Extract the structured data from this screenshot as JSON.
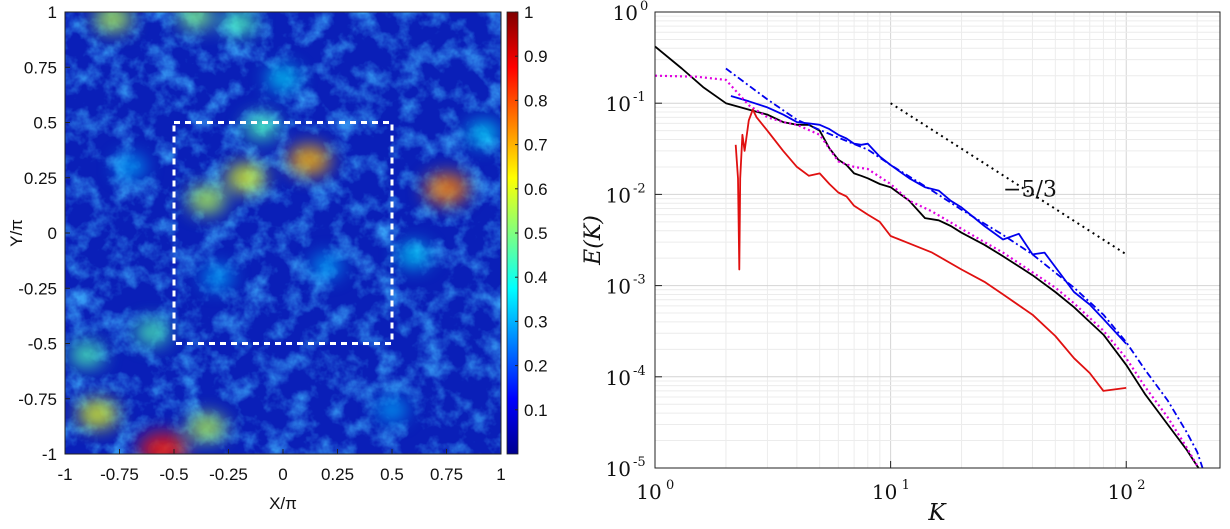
{
  "chart_data": [
    {
      "type": "heatmap",
      "title": "",
      "xlabel": "X/π",
      "ylabel": "Y/π",
      "xlim": [
        -1,
        1
      ],
      "ylim": [
        -1,
        1
      ],
      "xticks": [
        "-1",
        "-0.75",
        "-0.5",
        "-0.25",
        "0",
        "0.25",
        "0.5",
        "0.75",
        "1"
      ],
      "yticks": [
        "1",
        "0.75",
        "0.5",
        "0.25",
        "0",
        "-0.25",
        "-0.5",
        "-0.75",
        "-1"
      ],
      "colormap": "jet",
      "colorbar": {
        "range": [
          0,
          1
        ],
        "ticks": [
          "1",
          "0.9",
          "0.8",
          "0.7",
          "0.6",
          "0.5",
          "0.4",
          "0.3",
          "0.2",
          "0.1"
        ]
      },
      "dashed_box": {
        "x": [
          -0.5,
          0.5
        ],
        "y": [
          -0.5,
          0.5
        ],
        "color": "#ffffff"
      },
      "hotspots": [
        {
          "x": 0.12,
          "y": 0.33,
          "v": 0.7
        },
        {
          "x": -0.35,
          "y": 0.15,
          "v": 0.55
        },
        {
          "x": -0.17,
          "y": 0.25,
          "v": 0.6
        },
        {
          "x": -0.1,
          "y": 0.48,
          "v": 0.45
        },
        {
          "x": 0.75,
          "y": 0.2,
          "v": 0.75
        },
        {
          "x": -0.55,
          "y": -0.98,
          "v": 0.85
        },
        {
          "x": -0.85,
          "y": -0.82,
          "v": 0.6
        },
        {
          "x": -0.35,
          "y": -0.88,
          "v": 0.55
        },
        {
          "x": -0.78,
          "y": 0.97,
          "v": 0.55
        },
        {
          "x": -0.4,
          "y": 0.98,
          "v": 0.5
        },
        {
          "x": -0.2,
          "y": 0.95,
          "v": 0.45
        },
        {
          "x": -0.9,
          "y": -0.55,
          "v": 0.45
        },
        {
          "x": -0.6,
          "y": -0.45,
          "v": 0.45
        },
        {
          "x": 0.6,
          "y": -0.1,
          "v": 0.35
        },
        {
          "x": 0.92,
          "y": 0.45,
          "v": 0.35
        },
        {
          "x": 0.2,
          "y": -0.15,
          "v": 0.3
        },
        {
          "x": -0.3,
          "y": -0.2,
          "v": 0.3
        },
        {
          "x": 0.5,
          "y": -0.8,
          "v": 0.3
        },
        {
          "x": 0.0,
          "y": 0.7,
          "v": 0.35
        },
        {
          "x": -0.7,
          "y": 0.3,
          "v": 0.3
        }
      ]
    },
    {
      "type": "line",
      "title": "",
      "xlabel": "K",
      "ylabel": "E(K)",
      "xscale": "log",
      "yscale": "log",
      "xlim": [
        1,
        250
      ],
      "ylim": [
        1e-05,
        1
      ],
      "grid": true,
      "xticks": [
        {
          "base": "10",
          "exp": "0"
        },
        {
          "base": "10",
          "exp": "1"
        },
        {
          "base": "10",
          "exp": "2"
        }
      ],
      "yticks": [
        {
          "base": "10",
          "exp": "0"
        },
        {
          "base": "10",
          "exp": "-1"
        },
        {
          "base": "10",
          "exp": "-2"
        },
        {
          "base": "10",
          "exp": "-3"
        },
        {
          "base": "10",
          "exp": "-4"
        },
        {
          "base": "10",
          "exp": "-5"
        }
      ],
      "annotation": {
        "text": "−5/3",
        "x": 30,
        "y": 0.0095
      },
      "reference_line": {
        "x": [
          10,
          100
        ],
        "y": [
          0.1,
          0.0022
        ],
        "color": "#000000",
        "style": "dotted"
      },
      "series": [
        {
          "color": "#000000",
          "style": "solid",
          "x": [
            1,
            1.3,
            1.6,
            2,
            2.5,
            3,
            3.5,
            4,
            4.5,
            5,
            5.5,
            6,
            6.5,
            7,
            7.5,
            8,
            9,
            10,
            12,
            14,
            16,
            18,
            20,
            25,
            30,
            40,
            50,
            60,
            70,
            80,
            100,
            120,
            150,
            180,
            200,
            230
          ],
          "y": [
            0.42,
            0.24,
            0.15,
            0.1,
            0.085,
            0.075,
            0.062,
            0.058,
            0.058,
            0.05,
            0.032,
            0.024,
            0.021,
            0.017,
            0.016,
            0.015,
            0.013,
            0.012,
            0.0085,
            0.0055,
            0.0052,
            0.0045,
            0.0038,
            0.0028,
            0.0021,
            0.0013,
            0.00085,
            0.00058,
            0.0004,
            0.00029,
            0.000135,
            6.5e-05,
            3e-05,
            1.6e-05,
            1.05e-05,
            6.5e-06
          ]
        },
        {
          "color": "#0000ee",
          "style": "solid",
          "x": [
            2.1,
            2.5,
            3,
            3.5,
            4,
            4.5,
            5,
            5.5,
            6,
            6.5,
            7,
            7.5,
            8,
            9,
            10,
            12,
            14,
            16,
            18,
            20,
            25,
            30,
            35,
            40,
            45,
            50,
            60,
            70,
            80,
            100
          ],
          "y": [
            0.12,
            0.105,
            0.09,
            0.075,
            0.062,
            0.06,
            0.058,
            0.052,
            0.045,
            0.041,
            0.036,
            0.035,
            0.036,
            0.026,
            0.021,
            0.015,
            0.012,
            0.011,
            0.0085,
            0.0072,
            0.0045,
            0.0032,
            0.0037,
            0.0022,
            0.0023,
            0.0016,
            0.00085,
            0.00062,
            0.00043,
            0.00023
          ]
        },
        {
          "color": "#0000ee",
          "style": "dashdot",
          "x": [
            2,
            3,
            4,
            5,
            6,
            8,
            10,
            15,
            20,
            30,
            40,
            60,
            80,
            100,
            120,
            150,
            180,
            200,
            220
          ],
          "y": [
            0.24,
            0.11,
            0.066,
            0.051,
            0.042,
            0.031,
            0.021,
            0.011,
            0.0068,
            0.0036,
            0.0022,
            0.00095,
            0.00048,
            0.00024,
            0.00012,
            5.5e-05,
            2.5e-05,
            1.5e-05,
            7.2e-06
          ]
        },
        {
          "color": "#e000e0",
          "style": "dotted",
          "x": [
            1,
            1.5,
            2,
            2.5,
            3,
            3.5,
            4,
            5,
            6,
            7,
            8,
            10,
            12,
            15,
            20,
            25,
            30,
            40,
            50,
            60,
            80,
            100,
            120,
            150,
            180,
            210
          ],
          "y": [
            0.2,
            0.195,
            0.18,
            0.095,
            0.07,
            0.062,
            0.058,
            0.045,
            0.023,
            0.02,
            0.019,
            0.013,
            0.0085,
            0.0065,
            0.0042,
            0.003,
            0.0023,
            0.0014,
            0.00095,
            0.00064,
            0.00032,
            0.00016,
            7.8e-05,
            3.6e-05,
            1.7e-05,
            8.5e-06
          ]
        },
        {
          "color": "#e01010",
          "style": "solid",
          "x": [
            2.2,
            2.25,
            2.28,
            2.3,
            2.35,
            2.4,
            2.5,
            2.6,
            2.7,
            3,
            3.5,
            4,
            4.5,
            5,
            5.5,
            6,
            6.5,
            7,
            8,
            9,
            10,
            12,
            15,
            20,
            25,
            30,
            40,
            50,
            60,
            70,
            80,
            100
          ],
          "y": [
            0.035,
            0.015,
            0.0015,
            0.015,
            0.045,
            0.03,
            0.065,
            0.085,
            0.07,
            0.05,
            0.03,
            0.02,
            0.016,
            0.017,
            0.013,
            0.0105,
            0.0095,
            0.0075,
            0.006,
            0.005,
            0.0035,
            0.0029,
            0.0023,
            0.0015,
            0.0011,
            0.0008,
            0.00048,
            0.00028,
            0.00016,
            0.00011,
            7e-05,
            7.55e-05
          ]
        }
      ]
    }
  ]
}
